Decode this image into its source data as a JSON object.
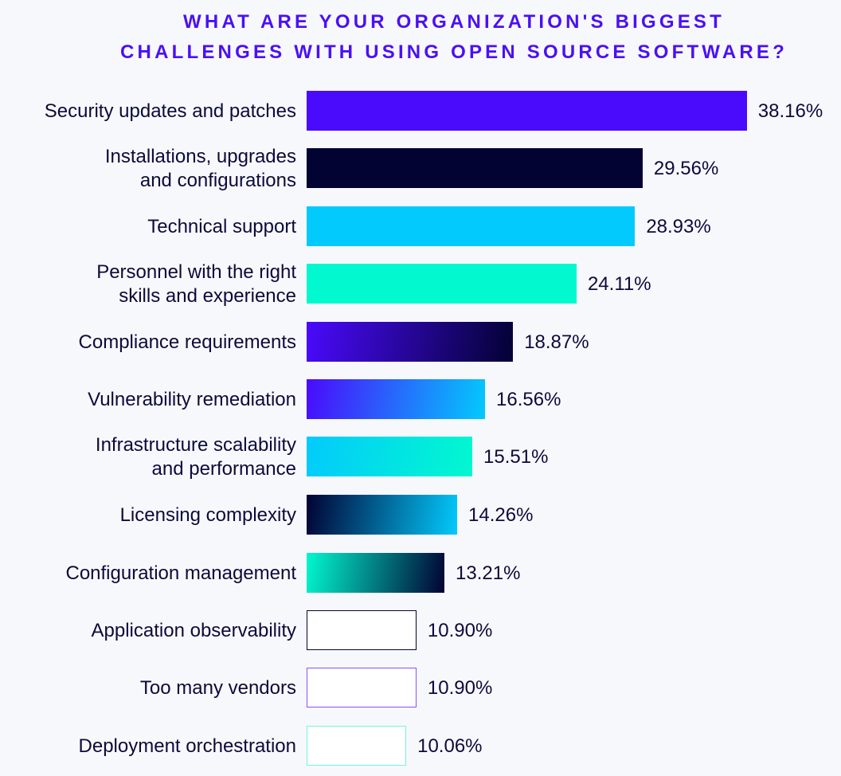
{
  "chart_data": {
    "type": "bar",
    "orientation": "horizontal",
    "title_lines": [
      "WHAT ARE YOUR ORGANIZATION'S BIGGEST",
      "CHALLENGES WITH USING OPEN SOURCE SOFTWARE?"
    ],
    "categories": [
      "Security updates and patches",
      "Installations, upgrades\nand configurations",
      "Technical support",
      "Personnel with the right\nskills and experience",
      "Compliance requirements",
      "Vulnerability remediation",
      "Infrastructure scalability\nand performance",
      "Licensing complexity",
      "Configuration management",
      "Application observability",
      "Too many vendors",
      "Deployment orchestration"
    ],
    "values": [
      38.16,
      29.56,
      28.93,
      24.11,
      18.87,
      16.56,
      15.51,
      14.26,
      13.21,
      10.9,
      10.9,
      10.06
    ],
    "value_labels": [
      "38.16%",
      "29.56%",
      "28.93%",
      "24.11%",
      "18.87%",
      "16.56%",
      "15.51%",
      "14.26%",
      "13.21%",
      "10.90%",
      "10.90%",
      "10.06%"
    ],
    "unit": "%",
    "bar_styles": [
      {
        "fill": "#4a0afc"
      },
      {
        "fill": "#020233"
      },
      {
        "fill": "#03cafc"
      },
      {
        "fill": "#02f8cf"
      },
      {
        "gradient": [
          "#4a0afc",
          "#020233"
        ]
      },
      {
        "gradient": [
          "#4a0afc",
          "#03cafc"
        ]
      },
      {
        "gradient": [
          "#03cafc",
          "#02f8cf"
        ]
      },
      {
        "gradient": [
          "#020233",
          "#03cafc"
        ]
      },
      {
        "gradient": [
          "#02f8cf",
          "#020233"
        ]
      },
      {
        "outline": "#020233"
      },
      {
        "outline": "#8a4dfd"
      },
      {
        "outline": "#6ff5dc"
      }
    ],
    "grid": false,
    "legend": "none"
  }
}
